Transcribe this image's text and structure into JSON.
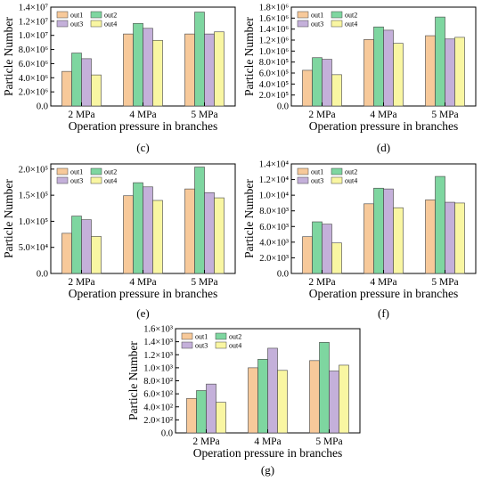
{
  "colors": {
    "out1": "#f7c99a",
    "out2": "#7ed6a0",
    "out3": "#c4b0da",
    "out4": "#f9f6a2"
  },
  "chart_data": [
    {
      "type": "bar",
      "panel_label": "(c)",
      "xlabel": "Operation pressure in branches",
      "ylabel": "Particle Number",
      "categories": [
        "2 MPa",
        "4 MPa",
        "5 MPa"
      ],
      "ylim": [
        0,
        14000000
      ],
      "yticks": [
        {
          "value": 0,
          "label": "0.0"
        },
        {
          "value": 2000000,
          "label": "2.0×10⁶"
        },
        {
          "value": 4000000,
          "label": "4.0×10⁶"
        },
        {
          "value": 6000000,
          "label": "6.0×10⁶"
        },
        {
          "value": 8000000,
          "label": "8.0×10⁶"
        },
        {
          "value": 10000000,
          "label": "1.0×10⁷"
        },
        {
          "value": 12000000,
          "label": "1.2×10⁷"
        },
        {
          "value": 14000000,
          "label": "1.4×10⁷"
        }
      ],
      "legend_position": "top-left",
      "series": [
        {
          "name": "out1",
          "values": [
            4900000,
            10200000,
            10200000
          ]
        },
        {
          "name": "out2",
          "values": [
            7500000,
            11700000,
            13300000
          ]
        },
        {
          "name": "out3",
          "values": [
            6700000,
            11000000,
            10200000
          ]
        },
        {
          "name": "out4",
          "values": [
            4400000,
            9300000,
            10500000
          ]
        }
      ]
    },
    {
      "type": "bar",
      "panel_label": "(d)",
      "xlabel": "Operation pressure in branches",
      "ylabel": "Particle Number",
      "categories": [
        "2 MPa",
        "4 MPa",
        "5 MPa"
      ],
      "ylim": [
        0,
        1800000
      ],
      "yticks": [
        {
          "value": 0,
          "label": "0.0"
        },
        {
          "value": 200000,
          "label": "2.0×10⁵"
        },
        {
          "value": 400000,
          "label": "4.0×10⁵"
        },
        {
          "value": 600000,
          "label": "6.0×10⁵"
        },
        {
          "value": 800000,
          "label": "8.0×10⁵"
        },
        {
          "value": 1000000,
          "label": "1.0×10⁶"
        },
        {
          "value": 1200000,
          "label": "1.2×10⁶"
        },
        {
          "value": 1400000,
          "label": "1.4×10⁶"
        },
        {
          "value": 1600000,
          "label": "1.6×10⁶"
        },
        {
          "value": 1800000,
          "label": "1.8×10⁶"
        }
      ],
      "legend_position": "top-left",
      "series": [
        {
          "name": "out1",
          "values": [
            650000,
            1210000,
            1280000
          ]
        },
        {
          "name": "out2",
          "values": [
            880000,
            1440000,
            1620000
          ]
        },
        {
          "name": "out3",
          "values": [
            850000,
            1380000,
            1220000
          ]
        },
        {
          "name": "out4",
          "values": [
            570000,
            1140000,
            1250000
          ]
        }
      ]
    },
    {
      "type": "bar",
      "panel_label": "(e)",
      "xlabel": "Operation pressure in branches",
      "ylabel": "Particle Number",
      "categories": [
        "2 MPa",
        "4 MPa",
        "5 MPa"
      ],
      "ylim": [
        0,
        210000
      ],
      "yticks": [
        {
          "value": 0,
          "label": "0.0"
        },
        {
          "value": 50000,
          "label": "5.0×10⁴"
        },
        {
          "value": 100000,
          "label": "1.0×10⁵"
        },
        {
          "value": 150000,
          "label": "1.5×10⁵"
        },
        {
          "value": 200000,
          "label": "2.0×10⁵"
        }
      ],
      "legend_position": "top-left",
      "series": [
        {
          "name": "out1",
          "values": [
            77000,
            149000,
            162000
          ]
        },
        {
          "name": "out2",
          "values": [
            110000,
            174000,
            204000
          ]
        },
        {
          "name": "out3",
          "values": [
            103000,
            166000,
            155000
          ]
        },
        {
          "name": "out4",
          "values": [
            71000,
            140000,
            145000
          ]
        }
      ]
    },
    {
      "type": "bar",
      "panel_label": "(f)",
      "xlabel": "Operation pressure in branches",
      "ylabel": "Particle Number",
      "categories": [
        "2 MPa",
        "4 MPa",
        "5 MPa"
      ],
      "ylim": [
        0,
        14000
      ],
      "yticks": [
        {
          "value": 0,
          "label": "0.0"
        },
        {
          "value": 2000,
          "label": "2.0×10³"
        },
        {
          "value": 4000,
          "label": "4.0×10³"
        },
        {
          "value": 6000,
          "label": "6.0×10³"
        },
        {
          "value": 8000,
          "label": "8.0×10³"
        },
        {
          "value": 10000,
          "label": "1.0×10⁴"
        },
        {
          "value": 12000,
          "label": "1.2×10⁴"
        },
        {
          "value": 14000,
          "label": "1.4×10⁴"
        }
      ],
      "legend_position": "top-left",
      "series": [
        {
          "name": "out1",
          "values": [
            4700,
            8900,
            9400
          ]
        },
        {
          "name": "out2",
          "values": [
            6600,
            10900,
            12400
          ]
        },
        {
          "name": "out3",
          "values": [
            6300,
            10800,
            9100
          ]
        },
        {
          "name": "out4",
          "values": [
            3900,
            8400,
            9000
          ]
        }
      ]
    },
    {
      "type": "bar",
      "panel_label": "(g)",
      "xlabel": "Operation pressure in branches",
      "ylabel": "Particle Number",
      "categories": [
        "2 MPa",
        "4 MPa",
        "5 MPa"
      ],
      "ylim": [
        0,
        1600
      ],
      "yticks": [
        {
          "value": 0,
          "label": "0.0"
        },
        {
          "value": 200,
          "label": "2.0×10²"
        },
        {
          "value": 400,
          "label": "4.0×10²"
        },
        {
          "value": 600,
          "label": "6.0×10²"
        },
        {
          "value": 800,
          "label": "8.0×10²"
        },
        {
          "value": 1000,
          "label": "1.0×10³"
        },
        {
          "value": 1200,
          "label": "1.2×10³"
        },
        {
          "value": 1400,
          "label": "1.4×10³"
        },
        {
          "value": 1600,
          "label": "1.6×10³"
        }
      ],
      "legend_position": "top-left",
      "series": [
        {
          "name": "out1",
          "values": [
            530,
            1000,
            1110
          ]
        },
        {
          "name": "out2",
          "values": [
            650,
            1130,
            1390
          ]
        },
        {
          "name": "out3",
          "values": [
            750,
            1300,
            950
          ]
        },
        {
          "name": "out4",
          "values": [
            470,
            960,
            1040
          ]
        }
      ]
    }
  ]
}
